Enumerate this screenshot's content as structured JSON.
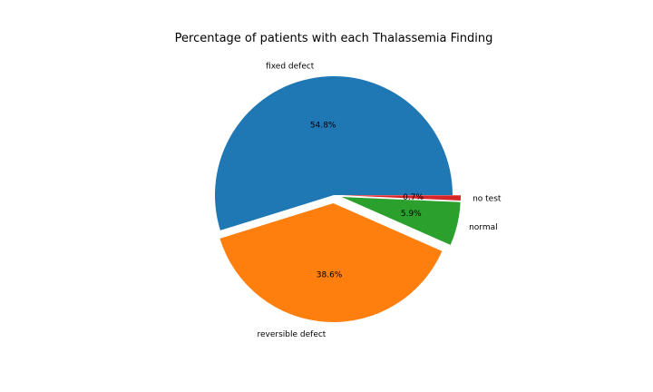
{
  "chart_data": {
    "type": "pie",
    "title": "Percentage of patients with each Thalassemia Finding",
    "slices": [
      {
        "label": "fixed defect",
        "value": 54.8,
        "pct_label": "54.8%",
        "color": "#1f77b4",
        "explode": 0
      },
      {
        "label": "reversible defect",
        "value": 38.6,
        "pct_label": "38.6%",
        "color": "#ff7f0e",
        "explode": 1
      },
      {
        "label": "normal",
        "value": 5.9,
        "pct_label": "5.9%",
        "color": "#2ca02c",
        "explode": 1
      },
      {
        "label": "no test",
        "value": 0.7,
        "pct_label": "0.7%",
        "color": "#d62728",
        "explode": 1
      }
    ],
    "start_angle_deg": 0,
    "direction": "counterclockwise",
    "legend": "none"
  }
}
